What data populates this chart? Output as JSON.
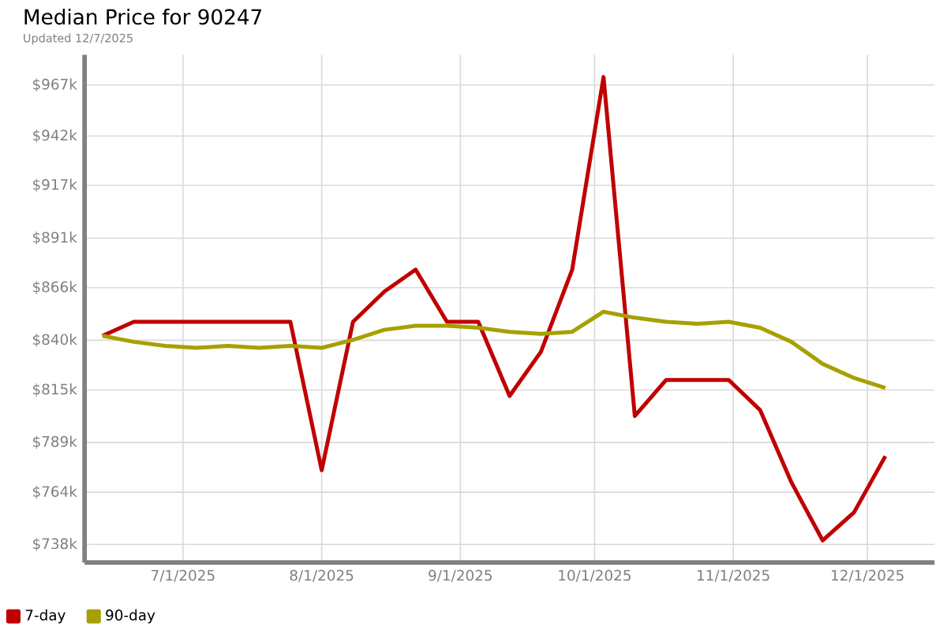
{
  "chart_data": {
    "type": "line",
    "title": "Median Price for 90247",
    "subtitle": "Updated 12/7/2025",
    "x": [
      "2025-06-13",
      "2025-06-20",
      "2025-06-27",
      "2025-07-04",
      "2025-07-11",
      "2025-07-18",
      "2025-07-25",
      "2025-08-01",
      "2025-08-08",
      "2025-08-15",
      "2025-08-22",
      "2025-08-29",
      "2025-09-05",
      "2025-09-12",
      "2025-09-19",
      "2025-09-26",
      "2025-10-03",
      "2025-10-10",
      "2025-10-17",
      "2025-10-24",
      "2025-10-31",
      "2025-11-07",
      "2025-11-14",
      "2025-11-21",
      "2025-11-28",
      "2025-12-05"
    ],
    "series": [
      {
        "name": "7-day",
        "color": "#c00000",
        "values": [
          842,
          849,
          849,
          849,
          849,
          849,
          849,
          775,
          849,
          864,
          875,
          849,
          849,
          812,
          834,
          875,
          971,
          802,
          820,
          820,
          820,
          805,
          769,
          740,
          754,
          782
        ]
      },
      {
        "name": "90-day",
        "color": "#a6a000",
        "values": [
          842,
          839,
          837,
          836,
          837,
          836,
          837,
          836,
          840,
          845,
          847,
          847,
          846,
          844,
          843,
          844,
          854,
          851,
          849,
          848,
          849,
          846,
          839,
          828,
          821,
          816
        ]
      }
    ],
    "xlim": [
      "2025-06-09",
      "2025-12-16"
    ],
    "xticks": [
      {
        "value": "2025-07-01",
        "label": "7/1/2025"
      },
      {
        "value": "2025-08-01",
        "label": "8/1/2025"
      },
      {
        "value": "2025-09-01",
        "label": "9/1/2025"
      },
      {
        "value": "2025-10-01",
        "label": "10/1/2025"
      },
      {
        "value": "2025-11-01",
        "label": "11/1/2025"
      },
      {
        "value": "2025-12-01",
        "label": "12/1/2025"
      }
    ],
    "ylim": [
      729,
      982
    ],
    "yticks": [
      {
        "value": 738,
        "label": "$738k"
      },
      {
        "value": 764,
        "label": "$764k"
      },
      {
        "value": 788.89,
        "label": "$789k"
      },
      {
        "value": 815,
        "label": "$815k"
      },
      {
        "value": 839.78,
        "label": "$840k"
      },
      {
        "value": 866,
        "label": "$866k"
      },
      {
        "value": 890.67,
        "label": "$891k"
      },
      {
        "value": 917,
        "label": "$917k"
      },
      {
        "value": 941.56,
        "label": "$942k"
      },
      {
        "value": 967,
        "label": "$967k"
      }
    ],
    "grid": true,
    "legend": "bottom left"
  }
}
